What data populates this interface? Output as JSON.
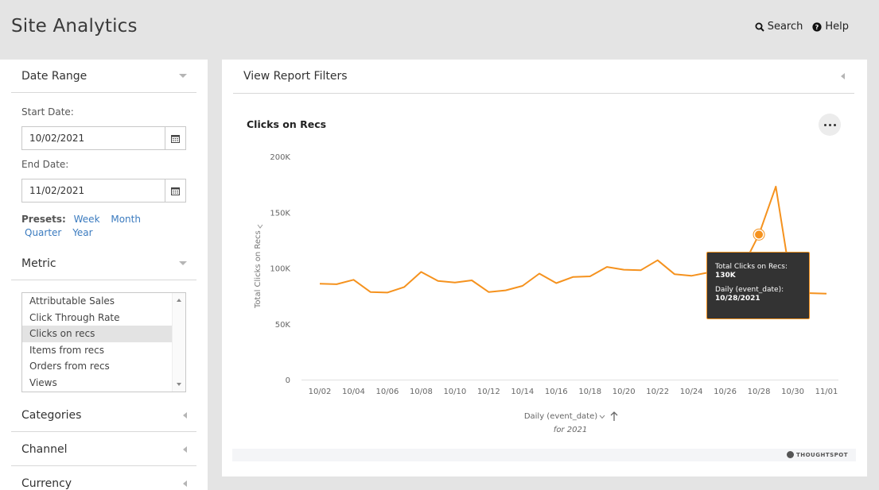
{
  "header": {
    "title": "Site Analytics",
    "search_label": "Search",
    "help_label": "Help"
  },
  "sidebar": {
    "date_range": {
      "title": "Date Range",
      "start_label": "Start Date:",
      "start_value": "10/02/2021",
      "end_label": "End Date:",
      "end_value": "11/02/2021"
    },
    "presets": {
      "label": "Presets:",
      "week": "Week",
      "month": "Month",
      "quarter": "Quarter",
      "year": "Year"
    },
    "metric": {
      "title": "Metric",
      "items": [
        "Attributable Sales",
        "Click Through Rate",
        "Clicks on recs",
        "Items from recs",
        "Orders from recs",
        "Views"
      ],
      "selected": "Clicks on recs"
    },
    "categories_title": "Categories",
    "channel_title": "Channel",
    "currency_title": "Currency"
  },
  "main": {
    "filters_label": "View Report Filters",
    "brand": "THOUGHTSPOT",
    "tooltip": {
      "metric_label": "Total Clicks on Recs:",
      "metric_value": "130K",
      "date_label": "Daily (event_date):",
      "date_value": "10/28/2021"
    }
  },
  "colors": {
    "line": "#f5921e",
    "link": "#3b7bbf"
  },
  "chart_data": {
    "type": "line",
    "title": "Clicks on Recs",
    "xlabel": "Daily (event_date)",
    "xlabel_sub": "for 2021",
    "ylabel": "Total Clicks on Recs",
    "ylim": [
      0,
      200000
    ],
    "y_ticks": [
      "0",
      "50K",
      "100K",
      "150K",
      "200K"
    ],
    "y_tick_values": [
      0,
      50000,
      100000,
      150000,
      200000
    ],
    "x_tick_labels": [
      "10/02",
      "10/04",
      "10/06",
      "10/08",
      "10/10",
      "10/12",
      "10/14",
      "10/16",
      "10/18",
      "10/20",
      "10/22",
      "10/24",
      "10/26",
      "10/28",
      "10/30",
      "11/01"
    ],
    "x": [
      "10/02",
      "10/03",
      "10/04",
      "10/05",
      "10/06",
      "10/07",
      "10/08",
      "10/09",
      "10/10",
      "10/11",
      "10/12",
      "10/13",
      "10/14",
      "10/15",
      "10/16",
      "10/17",
      "10/18",
      "10/19",
      "10/20",
      "10/21",
      "10/22",
      "10/23",
      "10/24",
      "10/25",
      "10/26",
      "10/27",
      "10/28",
      "10/29",
      "10/30",
      "10/31",
      "11/01"
    ],
    "series": [
      {
        "values": [
          86000,
          85500,
          89500,
          78500,
          78000,
          83000,
          96500,
          88500,
          87000,
          89000,
          78500,
          80000,
          84000,
          95000,
          86500,
          92000,
          92500,
          101000,
          98500,
          98000,
          107000,
          94500,
          93000,
          96000,
          97000,
          100000,
          130000,
          173000,
          78000,
          77500,
          77000
        ]
      }
    ],
    "highlight_index": 26,
    "grid": false
  }
}
